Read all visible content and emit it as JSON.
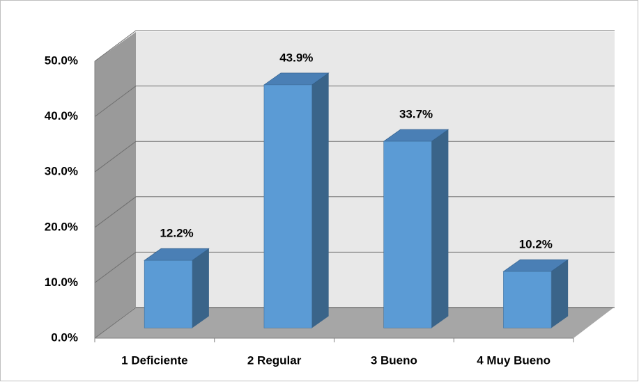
{
  "chart_data": {
    "type": "bar3d",
    "categories": [
      "1 Deficiente",
      "2 Regular",
      "3 Bueno",
      "4 Muy Bueno"
    ],
    "values": [
      12.2,
      43.9,
      33.7,
      10.2
    ],
    "value_labels": [
      "12.2%",
      "43.9%",
      "33.7%",
      "10.2%"
    ],
    "color": "#5b9bd5",
    "ylim": [
      0,
      50
    ],
    "yticks": [
      {
        "value": 0,
        "label": "0.0%"
      },
      {
        "value": 10,
        "label": "10.0%"
      },
      {
        "value": 20,
        "label": "20.0%"
      },
      {
        "value": 30,
        "label": "30.0%"
      },
      {
        "value": 40,
        "label": "40.0%"
      },
      {
        "value": 50,
        "label": "50.0%"
      }
    ],
    "grid": true
  }
}
